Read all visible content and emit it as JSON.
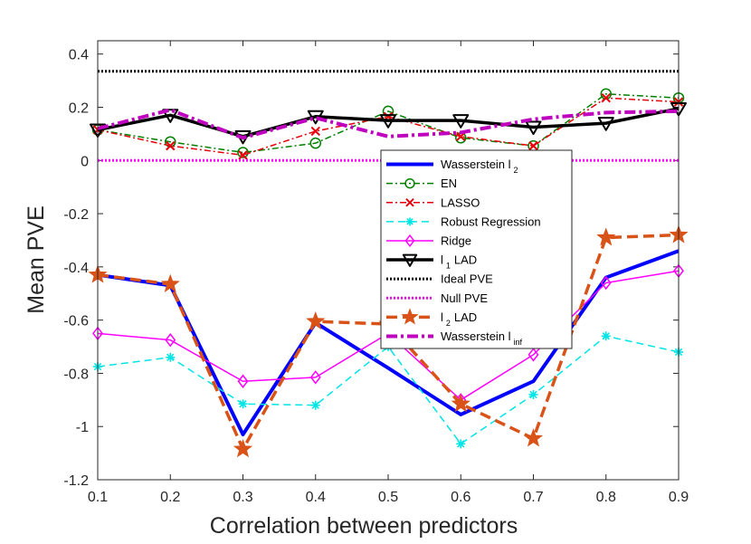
{
  "chart_data": {
    "type": "line",
    "xlabel": "Correlation between predictors",
    "ylabel": "Mean PVE",
    "xlim": [
      0.1,
      0.9
    ],
    "ylim": [
      -1.2,
      0.45
    ],
    "x": [
      0.1,
      0.2,
      0.3,
      0.4,
      0.5,
      0.6,
      0.7,
      0.8,
      0.9
    ],
    "xticks": [
      "0.1",
      "0.2",
      "0.3",
      "0.4",
      "0.5",
      "0.6",
      "0.7",
      "0.8",
      "0.9"
    ],
    "yticks": [
      {
        "value": 0.4,
        "label": "0.4"
      },
      {
        "value": 0.2,
        "label": "0.2"
      },
      {
        "value": 0.0,
        "label": "0"
      },
      {
        "value": -0.2,
        "label": "-0.2"
      },
      {
        "value": -0.4,
        "label": "-0.4"
      },
      {
        "value": -0.6,
        "label": "-0.6"
      },
      {
        "value": -0.8,
        "label": "-0.8"
      },
      {
        "value": -1.0,
        "label": "-1"
      },
      {
        "value": -1.2,
        "label": "-1.2"
      }
    ],
    "legend_position": "center-right",
    "series": [
      {
        "name": "Wasserstein l",
        "sub": "2",
        "color": "#0000ff",
        "dash": "",
        "width": 4,
        "marker": "none",
        "values": [
          -0.43,
          -0.47,
          -1.03,
          -0.61,
          -0.78,
          -0.955,
          -0.83,
          -0.44,
          -0.34
        ]
      },
      {
        "name": "EN",
        "sub": "",
        "color": "#008000",
        "dash": "7 3 2 3",
        "width": 1.5,
        "marker": "circle",
        "values": [
          0.115,
          0.07,
          0.03,
          0.065,
          0.185,
          0.085,
          0.055,
          0.25,
          0.235
        ]
      },
      {
        "name": "LASSO",
        "sub": "",
        "color": "#e8000b",
        "dash": "7 3 2 3",
        "width": 1.5,
        "marker": "x",
        "values": [
          0.115,
          0.055,
          0.02,
          0.11,
          0.165,
          0.09,
          0.055,
          0.235,
          0.22
        ]
      },
      {
        "name": "Robust Regression",
        "sub": "",
        "color": "#00e5e5",
        "dash": "8 5",
        "width": 1.5,
        "marker": "asterisk",
        "values": [
          -0.775,
          -0.74,
          -0.915,
          -0.92,
          -0.7,
          -1.065,
          -0.88,
          -0.66,
          -0.72
        ]
      },
      {
        "name": "Ridge",
        "sub": "",
        "color": "#ff00ff",
        "dash": "",
        "width": 1.5,
        "marker": "diamond",
        "values": [
          -0.65,
          -0.675,
          -0.83,
          -0.815,
          -0.65,
          -0.9,
          -0.73,
          -0.46,
          -0.415
        ]
      },
      {
        "name": "l",
        "sub": "1",
        "suffix": "LAD",
        "color": "#000000",
        "dash": "",
        "width": 3.5,
        "marker": "triangle-down",
        "values": [
          0.115,
          0.17,
          0.09,
          0.165,
          0.15,
          0.15,
          0.125,
          0.14,
          0.195
        ]
      },
      {
        "name": "Ideal PVE",
        "sub": "",
        "color": "#000000",
        "dash": "2 2",
        "width": 3,
        "marker": "none",
        "values": [
          0.335,
          0.335,
          0.335,
          0.335,
          0.335,
          0.335,
          0.335,
          0.335,
          0.335
        ]
      },
      {
        "name": "Null PVE",
        "sub": "",
        "color": "#ff00ff",
        "dash": "2 2",
        "width": 3,
        "marker": "none",
        "values": [
          0,
          0,
          0,
          0,
          0,
          0,
          0,
          0,
          0
        ]
      },
      {
        "name": "l",
        "sub": "2",
        "suffix": "LAD",
        "color": "#d95319",
        "dash": "12 6",
        "width": 3.5,
        "marker": "star",
        "values": [
          -0.43,
          -0.465,
          -1.085,
          -0.605,
          -0.615,
          -0.915,
          -1.045,
          -0.29,
          -0.28
        ]
      },
      {
        "name": "Wasserstein l",
        "sub": "inf",
        "color": "#bf00bf",
        "dash": "12 4 3 4",
        "width": 4,
        "marker": "none",
        "values": [
          0.12,
          0.19,
          0.085,
          0.16,
          0.09,
          0.105,
          0.155,
          0.18,
          0.185
        ]
      }
    ]
  }
}
